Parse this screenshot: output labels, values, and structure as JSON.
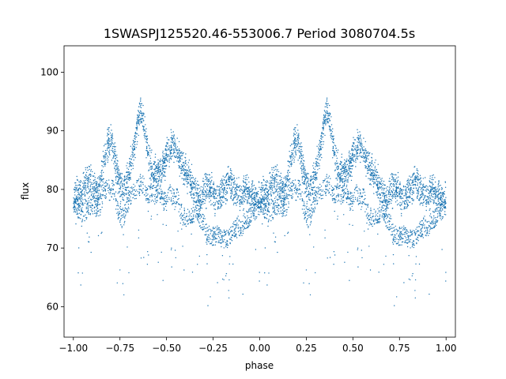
{
  "chart_data": {
    "type": "scatter",
    "title": "1SWASPJ125520.46-553006.7 Period 3080704.5s",
    "xlabel": "phase",
    "ylabel": "flux",
    "xlim": [
      -1.05,
      1.05
    ],
    "ylim": [
      54.8,
      104.5
    ],
    "xticks": [
      -1.0,
      -0.75,
      -0.5,
      -0.25,
      0.0,
      0.25,
      0.5,
      0.75,
      1.0
    ],
    "xtick_labels": [
      "−1.00",
      "−0.75",
      "−0.50",
      "−0.25",
      "0.00",
      "0.25",
      "0.50",
      "0.75",
      "1.00"
    ],
    "yticks": [
      60,
      70,
      80,
      90,
      100
    ],
    "ytick_labels": [
      "60",
      "70",
      "80",
      "90",
      "100"
    ],
    "grid": false,
    "point_color": "#1f77b4",
    "folded": true,
    "series": [
      {
        "x": [
          0.0,
          0.02,
          0.04,
          0.06,
          0.08,
          0.1,
          0.12,
          0.14,
          0.16,
          0.18,
          0.2,
          0.22,
          0.24,
          0.26,
          0.28,
          0.3,
          0.32,
          0.34,
          0.36,
          0.38,
          0.4,
          0.42,
          0.44,
          0.46,
          0.48,
          0.5,
          0.52,
          0.54,
          0.56,
          0.58,
          0.6,
          0.62,
          0.64,
          0.66,
          0.68,
          0.7,
          0.72,
          0.74,
          0.76,
          0.78,
          0.8,
          0.82,
          0.84,
          0.86,
          0.88,
          0.9,
          0.92,
          0.94,
          0.96,
          0.98
        ],
        "y_center": [
          78.5,
          79.5,
          79.0,
          80.5,
          82.0,
          81.0,
          79.5,
          80.0,
          84.0,
          87.0,
          88.5,
          86.0,
          82.0,
          80.0,
          80.5,
          83.0,
          86.0,
          90.0,
          93.5,
          91.0,
          86.0,
          83.5,
          82.5,
          83.0,
          84.0,
          85.5,
          87.0,
          88.0,
          86.0,
          84.5,
          83.0,
          82.0,
          80.5,
          79.0,
          78.0,
          79.5,
          80.5,
          80.0,
          79.0,
          78.5,
          79.5,
          80.5,
          81.5,
          80.0,
          79.5,
          78.5,
          80.0,
          79.5,
          79.0,
          78.5
        ],
        "y_low": [
          77.5,
          77.0,
          76.0,
          76.0,
          77.0,
          77.5,
          77.0,
          77.0,
          79.0,
          80.5,
          80.5,
          79.5,
          76.5,
          75.0,
          76.0,
          78.5,
          80.0,
          80.0,
          81.0,
          80.5,
          79.0,
          79.5,
          79.0,
          80.0,
          78.0,
          78.0,
          79.5,
          78.5,
          78.5,
          76.0,
          75.0,
          75.5,
          75.5,
          77.0,
          75.0,
          74.0,
          72.5,
          72.0,
          72.0,
          72.5,
          71.5,
          71.5,
          72.0,
          73.0,
          74.0,
          73.5,
          74.5,
          75.0,
          76.0,
          76.5
        ]
      }
    ]
  }
}
